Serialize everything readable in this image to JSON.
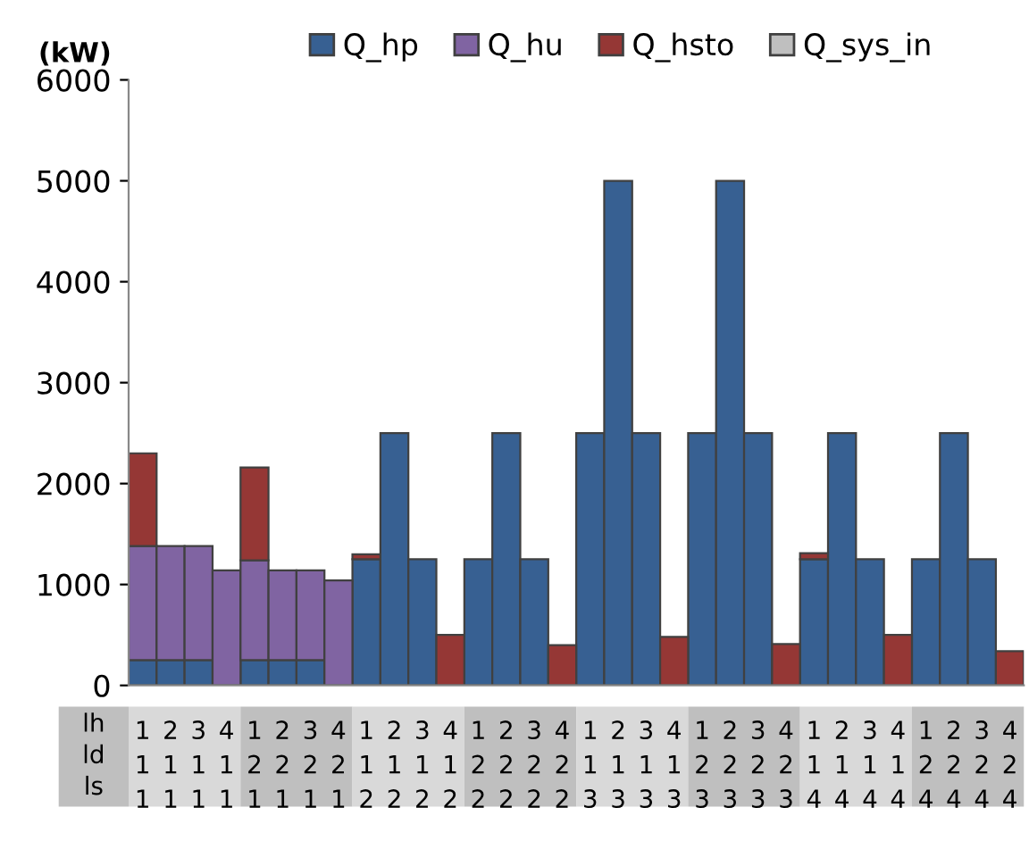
{
  "chart_data": {
    "type": "bar",
    "stacked": true,
    "ylabel": "(kW)",
    "categories": [
      "1\n1\n1",
      "2\n1\n1",
      "3\n1\n1",
      "4\n1\n1",
      "1\n2\n1",
      "2\n2\n1",
      "3\n2\n1",
      "4\n2\n1",
      "1\n1\n2",
      "2\n1\n2",
      "3\n1\n2",
      "4\n1\n2",
      "1\n2\n2",
      "2\n2\n2",
      "3\n2\n2",
      "4\n2\n2",
      "1\n1\n3",
      "2\n1\n3",
      "3\n1\n3",
      "4\n1\n3",
      "1\n2\n3",
      "2\n2\n3",
      "3\n2\n3",
      "4\n2\n3",
      "1\n1\n4",
      "2\n1\n4",
      "3\n1\n4",
      "4\n1\n4",
      "1\n2\n4",
      "2\n2\n4",
      "3\n2\n4",
      "4\n2\n4"
    ],
    "series": [
      {
        "name": "Q_hp",
        "color": "#376092",
        "values": [
          250,
          250,
          250,
          0,
          250,
          250,
          250,
          0,
          1250,
          2500,
          1250,
          0,
          1250,
          2500,
          1250,
          0,
          2500,
          5000,
          2500,
          0,
          2500,
          5000,
          2500,
          0,
          1250,
          2500,
          1250,
          0,
          1250,
          2500,
          1250,
          0
        ]
      },
      {
        "name": "Q_hu",
        "color": "#8064a2",
        "values": [
          1130,
          1130,
          1130,
          1140,
          990,
          890,
          890,
          1040,
          0,
          0,
          0,
          0,
          0,
          0,
          0,
          0,
          0,
          0,
          0,
          0,
          0,
          0,
          0,
          0,
          0,
          0,
          0,
          0,
          0,
          0,
          0,
          0
        ]
      },
      {
        "name": "Q_hsto",
        "color": "#953735",
        "values": [
          920,
          0,
          0,
          0,
          920,
          0,
          0,
          0,
          50,
          0,
          0,
          500,
          0,
          0,
          0,
          400,
          0,
          0,
          0,
          480,
          0,
          0,
          0,
          410,
          60,
          0,
          0,
          500,
          0,
          0,
          0,
          340
        ]
      },
      {
        "name": "Q_sys_in",
        "color": "#bfbfbf",
        "values": [
          0,
          0,
          0,
          0,
          0,
          0,
          0,
          0,
          0,
          0,
          0,
          0,
          0,
          0,
          0,
          0,
          0,
          0,
          0,
          0,
          0,
          0,
          0,
          0,
          0,
          0,
          0,
          0,
          0,
          0,
          0,
          0
        ]
      }
    ],
    "ylim": [
      0,
      6000
    ],
    "yticks": [
      0,
      1000,
      2000,
      3000,
      4000,
      5000,
      6000
    ],
    "grid": false,
    "legend": "top",
    "annotations": [
      "lh",
      "ld",
      "ls"
    ]
  }
}
